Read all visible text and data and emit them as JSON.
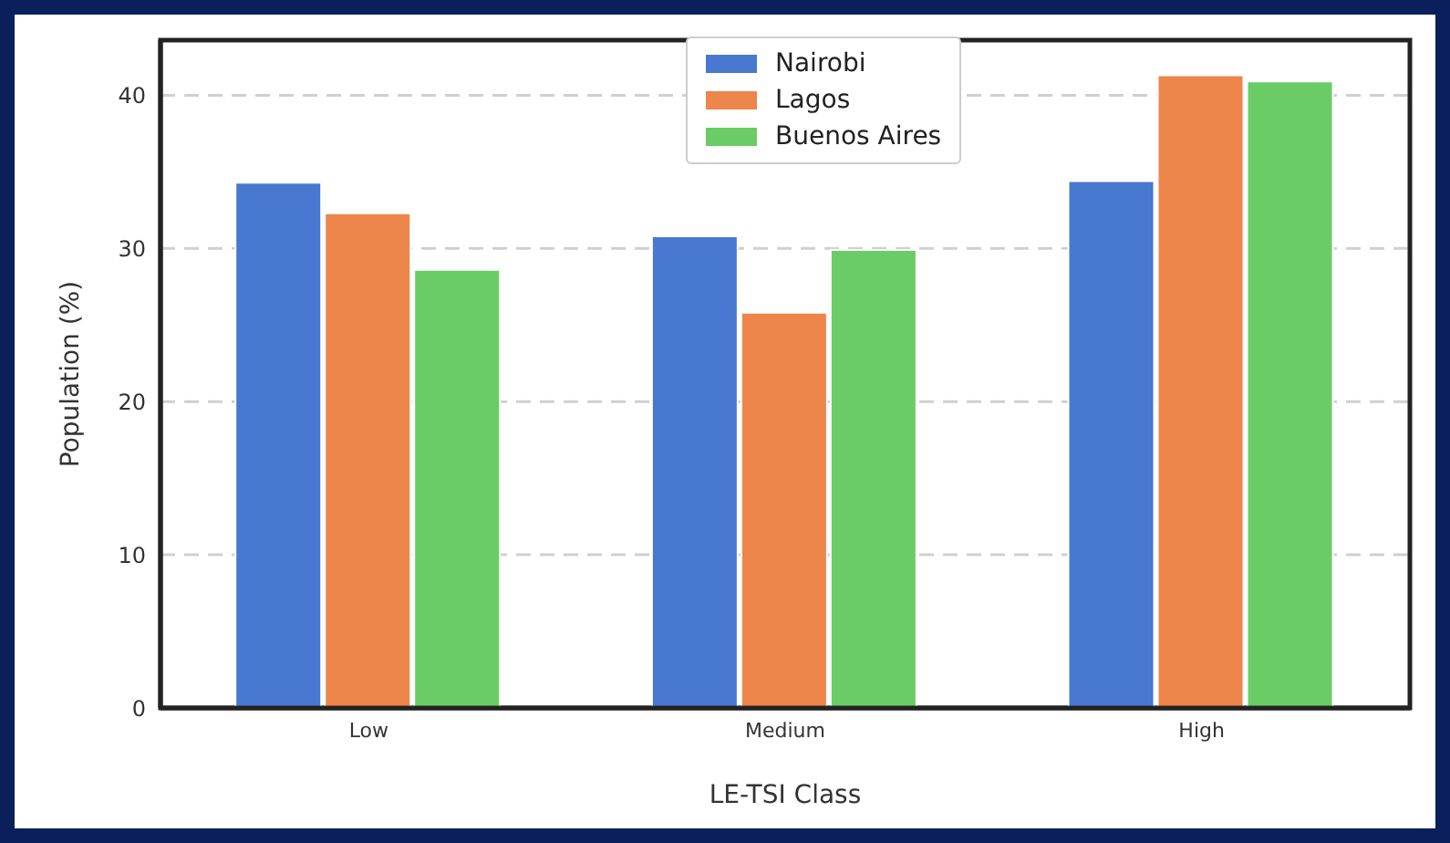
{
  "chart_data": {
    "type": "bar",
    "xlabel": "LE-TSI Class",
    "ylabel": "Population (%)",
    "categories": [
      "Low",
      "Medium",
      "High"
    ],
    "series": [
      {
        "name": "Nairobi",
        "color": "#4878d0",
        "values": [
          34.3,
          30.8,
          34.4
        ]
      },
      {
        "name": "Lagos",
        "color": "#ee854a",
        "values": [
          32.3,
          25.8,
          41.3
        ]
      },
      {
        "name": "Buenos Aires",
        "color": "#6acc64",
        "values": [
          28.6,
          29.9,
          40.9
        ]
      }
    ],
    "ylim": [
      0,
      43.6
    ],
    "yticks": [
      0,
      10,
      20,
      30,
      40
    ],
    "grid": "y",
    "legend": "top"
  }
}
